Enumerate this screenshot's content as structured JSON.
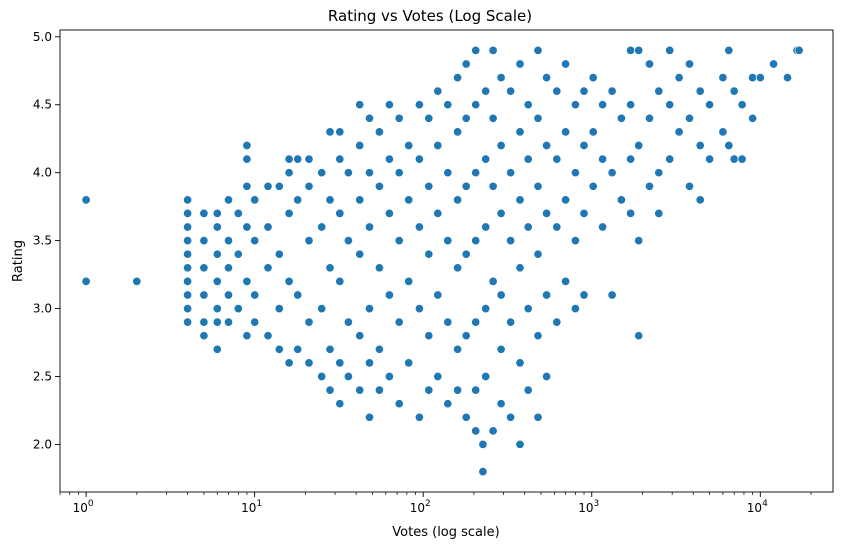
{
  "chart_data": {
    "type": "scatter",
    "title": "Rating vs Votes (Log Scale)",
    "xlabel": "Votes (log scale)",
    "ylabel": "Rating",
    "xscale": "log",
    "xlim": [
      0.7,
      27000
    ],
    "ylim": [
      1.65,
      5.05
    ],
    "x_ticks": [
      {
        "value": 1,
        "base": "10",
        "exp": "0"
      },
      {
        "value": 10,
        "base": "10",
        "exp": "1"
      },
      {
        "value": 100,
        "base": "10",
        "exp": "2"
      },
      {
        "value": 1000,
        "base": "10",
        "exp": "3"
      },
      {
        "value": 10000,
        "base": "10",
        "exp": "4"
      }
    ],
    "y_ticks": [
      "2.0",
      "2.5",
      "3.0",
      "3.5",
      "4.0",
      "4.5",
      "5.0"
    ],
    "grid": false,
    "legend": "none",
    "marker_color": "#1f77b4",
    "points": [
      [
        1,
        3.8
      ],
      [
        1,
        3.2
      ],
      [
        2,
        3.2
      ],
      [
        6,
        2.7
      ],
      [
        4,
        3.8
      ],
      [
        4,
        3.7
      ],
      [
        4,
        3.6
      ],
      [
        4,
        3.5
      ],
      [
        4,
        3.4
      ],
      [
        4,
        3.3
      ],
      [
        4,
        3.2
      ],
      [
        4,
        3.1
      ],
      [
        4,
        3.0
      ],
      [
        4,
        2.9
      ],
      [
        5,
        3.7
      ],
      [
        5,
        3.5
      ],
      [
        5,
        3.3
      ],
      [
        5,
        3.1
      ],
      [
        5,
        2.9
      ],
      [
        5,
        2.8
      ],
      [
        6,
        3.7
      ],
      [
        6,
        3.6
      ],
      [
        6,
        3.4
      ],
      [
        6,
        3.2
      ],
      [
        6,
        3.0
      ],
      [
        6,
        2.9
      ],
      [
        7,
        3.8
      ],
      [
        7,
        3.5
      ],
      [
        7,
        3.3
      ],
      [
        7,
        3.1
      ],
      [
        7,
        2.9
      ],
      [
        8,
        3.7
      ],
      [
        8,
        3.4
      ],
      [
        8,
        3.0
      ],
      [
        9,
        4.2
      ],
      [
        9,
        4.1
      ],
      [
        9,
        3.9
      ],
      [
        9,
        3.6
      ],
      [
        9,
        3.2
      ],
      [
        9,
        2.8
      ],
      [
        10,
        3.8
      ],
      [
        10,
        3.5
      ],
      [
        10,
        3.1
      ],
      [
        10,
        2.9
      ],
      [
        12,
        3.9
      ],
      [
        12,
        3.6
      ],
      [
        12,
        3.3
      ],
      [
        12,
        2.8
      ],
      [
        14,
        3.9
      ],
      [
        14,
        3.4
      ],
      [
        14,
        3.0
      ],
      [
        14,
        2.7
      ],
      [
        16,
        4.1
      ],
      [
        16,
        4.0
      ],
      [
        16,
        3.7
      ],
      [
        16,
        3.2
      ],
      [
        16,
        2.6
      ],
      [
        18,
        4.1
      ],
      [
        18,
        3.8
      ],
      [
        18,
        3.1
      ],
      [
        18,
        2.7
      ],
      [
        21,
        4.1
      ],
      [
        21,
        3.9
      ],
      [
        21,
        3.5
      ],
      [
        21,
        2.9
      ],
      [
        21,
        2.6
      ],
      [
        25,
        4.0
      ],
      [
        25,
        3.6
      ],
      [
        25,
        3.0
      ],
      [
        25,
        2.5
      ],
      [
        28,
        4.3
      ],
      [
        28,
        3.8
      ],
      [
        28,
        3.3
      ],
      [
        28,
        2.7
      ],
      [
        28,
        2.4
      ],
      [
        32,
        4.3
      ],
      [
        32,
        4.1
      ],
      [
        32,
        3.7
      ],
      [
        32,
        3.2
      ],
      [
        32,
        2.6
      ],
      [
        32,
        2.3
      ],
      [
        36,
        4.0
      ],
      [
        36,
        3.5
      ],
      [
        36,
        2.9
      ],
      [
        36,
        2.5
      ],
      [
        42,
        4.5
      ],
      [
        42,
        4.2
      ],
      [
        42,
        3.8
      ],
      [
        42,
        3.4
      ],
      [
        42,
        2.8
      ],
      [
        42,
        2.4
      ],
      [
        48,
        4.4
      ],
      [
        48,
        4.0
      ],
      [
        48,
        3.6
      ],
      [
        48,
        3.0
      ],
      [
        48,
        2.6
      ],
      [
        48,
        2.2
      ],
      [
        55,
        4.3
      ],
      [
        55,
        3.9
      ],
      [
        55,
        3.3
      ],
      [
        55,
        2.7
      ],
      [
        55,
        2.4
      ],
      [
        63,
        4.5
      ],
      [
        63,
        4.1
      ],
      [
        63,
        3.7
      ],
      [
        63,
        3.1
      ],
      [
        63,
        2.5
      ],
      [
        72,
        4.4
      ],
      [
        72,
        4.0
      ],
      [
        72,
        3.5
      ],
      [
        72,
        2.9
      ],
      [
        72,
        2.3
      ],
      [
        82,
        4.2
      ],
      [
        82,
        3.8
      ],
      [
        82,
        3.2
      ],
      [
        82,
        2.6
      ],
      [
        95,
        4.5
      ],
      [
        95,
        4.1
      ],
      [
        95,
        3.6
      ],
      [
        95,
        3.0
      ],
      [
        95,
        2.2
      ],
      [
        108,
        4.4
      ],
      [
        108,
        3.9
      ],
      [
        108,
        3.4
      ],
      [
        108,
        2.8
      ],
      [
        108,
        2.4
      ],
      [
        122,
        4.6
      ],
      [
        122,
        4.2
      ],
      [
        122,
        3.7
      ],
      [
        122,
        3.1
      ],
      [
        122,
        2.5
      ],
      [
        140,
        4.5
      ],
      [
        140,
        4.0
      ],
      [
        140,
        3.5
      ],
      [
        140,
        2.9
      ],
      [
        140,
        2.3
      ],
      [
        160,
        4.7
      ],
      [
        160,
        4.3
      ],
      [
        160,
        3.8
      ],
      [
        160,
        3.3
      ],
      [
        160,
        2.7
      ],
      [
        160,
        2.4
      ],
      [
        180,
        4.8
      ],
      [
        180,
        4.4
      ],
      [
        180,
        3.9
      ],
      [
        180,
        3.4
      ],
      [
        180,
        2.8
      ],
      [
        180,
        2.2
      ],
      [
        205,
        4.9
      ],
      [
        205,
        4.5
      ],
      [
        205,
        4.0
      ],
      [
        205,
        3.5
      ],
      [
        205,
        2.9
      ],
      [
        205,
        2.4
      ],
      [
        205,
        2.1
      ],
      [
        226,
        1.8
      ],
      [
        226,
        2.0
      ],
      [
        235,
        4.6
      ],
      [
        235,
        4.1
      ],
      [
        235,
        3.6
      ],
      [
        235,
        3.0
      ],
      [
        235,
        2.5
      ],
      [
        260,
        4.9
      ],
      [
        260,
        4.4
      ],
      [
        260,
        3.9
      ],
      [
        260,
        3.2
      ],
      [
        260,
        2.1
      ],
      [
        290,
        4.7
      ],
      [
        290,
        4.2
      ],
      [
        290,
        3.7
      ],
      [
        290,
        3.1
      ],
      [
        290,
        2.7
      ],
      [
        290,
        2.3
      ],
      [
        330,
        4.6
      ],
      [
        330,
        4.0
      ],
      [
        330,
        3.5
      ],
      [
        330,
        2.9
      ],
      [
        330,
        2.2
      ],
      [
        375,
        4.8
      ],
      [
        375,
        4.3
      ],
      [
        375,
        3.8
      ],
      [
        375,
        3.3
      ],
      [
        375,
        2.6
      ],
      [
        375,
        2.0
      ],
      [
        420,
        4.5
      ],
      [
        420,
        4.1
      ],
      [
        420,
        3.6
      ],
      [
        420,
        3.0
      ],
      [
        420,
        2.4
      ],
      [
        480,
        4.9
      ],
      [
        480,
        4.4
      ],
      [
        480,
        3.9
      ],
      [
        480,
        3.4
      ],
      [
        480,
        2.8
      ],
      [
        480,
        2.2
      ],
      [
        540,
        4.7
      ],
      [
        540,
        4.2
      ],
      [
        540,
        3.7
      ],
      [
        540,
        3.1
      ],
      [
        540,
        2.5
      ],
      [
        620,
        4.6
      ],
      [
        620,
        4.1
      ],
      [
        620,
        3.6
      ],
      [
        620,
        2.9
      ],
      [
        700,
        4.8
      ],
      [
        700,
        4.3
      ],
      [
        700,
        3.8
      ],
      [
        700,
        3.2
      ],
      [
        800,
        4.5
      ],
      [
        800,
        4.0
      ],
      [
        800,
        3.5
      ],
      [
        800,
        3.0
      ],
      [
        900,
        4.6
      ],
      [
        900,
        4.2
      ],
      [
        900,
        3.7
      ],
      [
        900,
        3.1
      ],
      [
        1020,
        4.7
      ],
      [
        1020,
        4.3
      ],
      [
        1020,
        3.9
      ],
      [
        1160,
        4.5
      ],
      [
        1160,
        4.1
      ],
      [
        1160,
        3.6
      ],
      [
        1320,
        4.6
      ],
      [
        1320,
        4.0
      ],
      [
        1320,
        3.1
      ],
      [
        1500,
        4.4
      ],
      [
        1500,
        3.8
      ],
      [
        1700,
        4.9
      ],
      [
        1700,
        4.5
      ],
      [
        1700,
        4.1
      ],
      [
        1700,
        3.7
      ],
      [
        1900,
        4.9
      ],
      [
        1900,
        4.2
      ],
      [
        1900,
        3.5
      ],
      [
        1900,
        2.8
      ],
      [
        2200,
        4.8
      ],
      [
        2200,
        4.4
      ],
      [
        2200,
        3.9
      ],
      [
        2500,
        4.6
      ],
      [
        2500,
        4.0
      ],
      [
        2500,
        3.7
      ],
      [
        2900,
        4.9
      ],
      [
        2900,
        4.5
      ],
      [
        2900,
        4.1
      ],
      [
        3300,
        4.7
      ],
      [
        3300,
        4.3
      ],
      [
        3800,
        4.8
      ],
      [
        3800,
        4.4
      ],
      [
        3800,
        3.9
      ],
      [
        4400,
        4.6
      ],
      [
        4400,
        4.2
      ],
      [
        4400,
        3.8
      ],
      [
        5000,
        4.5
      ],
      [
        5000,
        4.1
      ],
      [
        6000,
        4.7
      ],
      [
        6000,
        4.3
      ],
      [
        6500,
        4.9
      ],
      [
        6500,
        4.2
      ],
      [
        7000,
        4.6
      ],
      [
        7000,
        4.1
      ],
      [
        7800,
        4.5
      ],
      [
        7800,
        4.1
      ],
      [
        9000,
        4.7
      ],
      [
        9000,
        4.4
      ],
      [
        10000,
        4.7
      ],
      [
        12000,
        4.8
      ],
      [
        14500,
        4.7
      ],
      [
        16500,
        4.9
      ],
      [
        17000,
        4.9
      ]
    ]
  }
}
